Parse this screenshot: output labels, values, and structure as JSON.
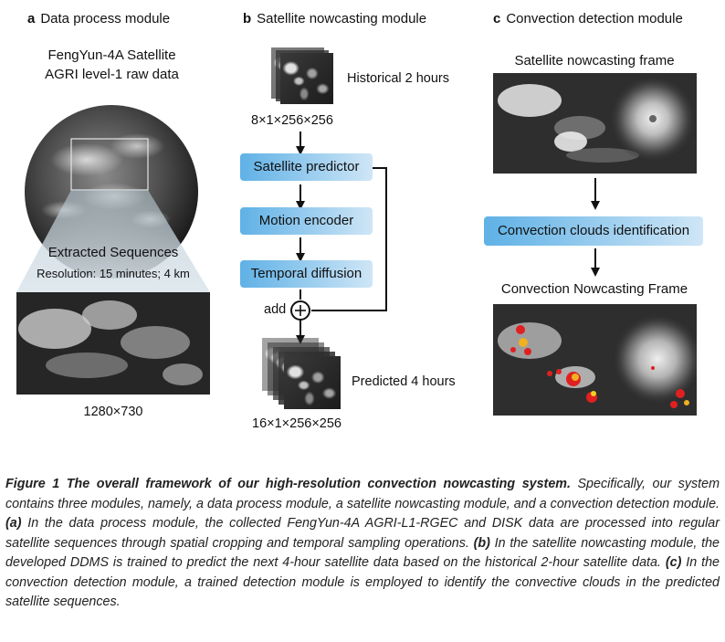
{
  "panel_a": {
    "letter": "a",
    "title": "Data process module",
    "source_line1": "FengYun-4A Satellite",
    "source_line2": "AGRI level-1 raw data",
    "extracted_title": "Extracted Sequences",
    "resolution": "Resolution: 15 minutes; 4 km",
    "size": "1280×730"
  },
  "panel_b": {
    "letter": "b",
    "title": "Satellite nowcasting module",
    "historical_label": "Historical 2 hours",
    "input_shape": "8×1×256×256",
    "steps": [
      "Satellite predictor",
      "Motion encoder",
      "Temporal diffusion"
    ],
    "add_label": "add",
    "plus_symbol": "+",
    "predicted_label": "Predicted 4 hours",
    "output_shape": "16×1×256×256"
  },
  "panel_c": {
    "letter": "c",
    "title": "Convection detection module",
    "frame_title": "Satellite nowcasting frame",
    "step": "Convection clouds identification",
    "output_title": "Convection Nowcasting Frame"
  },
  "caption": {
    "bold": "Figure 1 The overall framework of our high-resolution convection nowcasting system.",
    "intro": " Specifically, our system contains three modules, namely, a data process module, a satellite nowcasting module, and a convection detection module. ",
    "a_tag": "(a)",
    "a_text": " In the data process module, the collected FengYun-4A AGRI-L1-RGEC and DISK data are processed into regular satellite sequences through spatial cropping and temporal sampling operations. ",
    "b_tag": "(b)",
    "b_text": " In the satellite nowcasting module, the developed DDMS is trained to predict the next 4-hour satellite data based on the historical 2-hour satellite data. ",
    "c_tag": "(c)",
    "c_text": "  In the convection detection module, a trained detection module is employed to identify the convective clouds in the predicted satellite sequences."
  }
}
